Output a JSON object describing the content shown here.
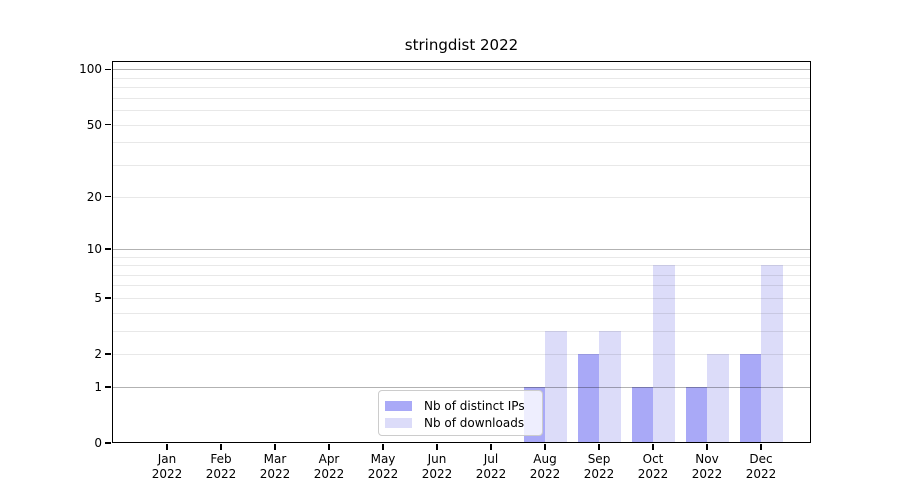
{
  "chart_data": {
    "type": "bar",
    "title": "stringdist 2022",
    "x": [
      "Jan",
      "Feb",
      "Mar",
      "Apr",
      "May",
      "Jun",
      "Jul",
      "Aug",
      "Sep",
      "Oct",
      "Nov",
      "Dec"
    ],
    "x_year": "2022",
    "series": [
      {
        "name": "Nb of distinct IPs",
        "color": "#a9a9f7",
        "values": [
          0,
          0,
          0,
          0,
          0,
          0,
          0,
          1,
          2,
          1,
          1,
          2
        ]
      },
      {
        "name": "Nb of downloads",
        "color": "#dcdcf9",
        "values": [
          0,
          0,
          0,
          0,
          0,
          0,
          0,
          3,
          3,
          8,
          2,
          8
        ]
      }
    ],
    "y_scale": "log1p",
    "ylim": [
      0,
      100
    ],
    "y_ticks": [
      0,
      1,
      2,
      5,
      10,
      20,
      50,
      100
    ],
    "y_major_gridlines": [
      1,
      10,
      100
    ],
    "y_minor_gridlines": [
      2,
      3,
      4,
      5,
      6,
      7,
      8,
      9,
      20,
      30,
      40,
      50,
      60,
      70,
      80,
      90
    ],
    "grid": true,
    "legend_position": "lower center",
    "legend": [
      "Nb of distinct IPs",
      "Nb of downloads"
    ]
  },
  "colors": {
    "background": "#ffffff",
    "bar_distinct_ips": "#a9a9f7",
    "bar_downloads": "#dcdcf9",
    "axis": "#000000",
    "major_gridline": "#b8b8b8",
    "minor_gridline": "#e8e8e8",
    "legend_border": "#cccccc"
  }
}
